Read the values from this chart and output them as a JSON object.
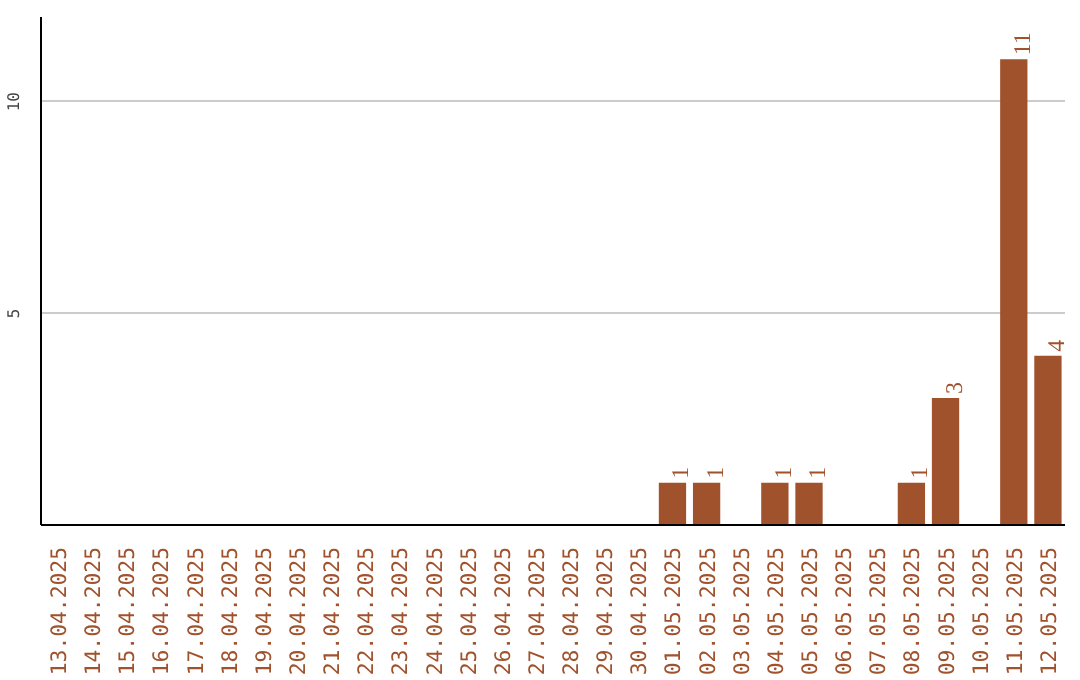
{
  "chart_data": {
    "type": "bar",
    "categories": [
      "13.04.2025",
      "14.04.2025",
      "15.04.2025",
      "16.04.2025",
      "17.04.2025",
      "18.04.2025",
      "19.04.2025",
      "20.04.2025",
      "21.04.2025",
      "22.04.2025",
      "23.04.2025",
      "24.04.2025",
      "25.04.2025",
      "26.04.2025",
      "27.04.2025",
      "28.04.2025",
      "29.04.2025",
      "30.04.2025",
      "01.05.2025",
      "02.05.2025",
      "03.05.2025",
      "04.05.2025",
      "05.05.2025",
      "06.05.2025",
      "07.05.2025",
      "08.05.2025",
      "09.05.2025",
      "10.05.2025",
      "11.05.2025",
      "12.05.2025"
    ],
    "values": [
      0,
      0,
      0,
      0,
      0,
      0,
      0,
      0,
      0,
      0,
      0,
      0,
      0,
      0,
      0,
      0,
      0,
      0,
      1,
      1,
      0,
      1,
      1,
      0,
      0,
      1,
      3,
      0,
      11,
      4
    ],
    "value_labels": [
      null,
      null,
      null,
      null,
      null,
      null,
      null,
      null,
      null,
      null,
      null,
      null,
      null,
      null,
      null,
      null,
      null,
      null,
      "1",
      "1",
      null,
      "1",
      "1",
      null,
      null,
      "1",
      "3",
      null,
      "11",
      "4"
    ],
    "color": "#a0522d",
    "ylim": [
      0,
      12
    ],
    "yticks": [
      5,
      10
    ],
    "grid": "y"
  }
}
